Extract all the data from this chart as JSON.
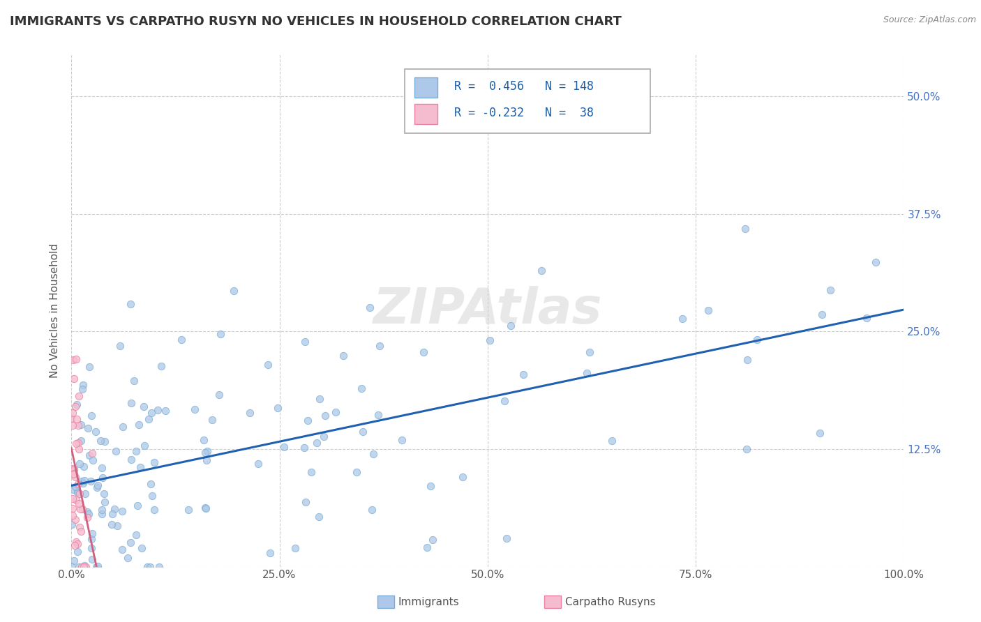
{
  "title": "IMMIGRANTS VS CARPATHO RUSYN NO VEHICLES IN HOUSEHOLD CORRELATION CHART",
  "source": "Source: ZipAtlas.com",
  "ylabel": "No Vehicles in Household",
  "xlim": [
    0,
    1.0
  ],
  "ylim": [
    0,
    0.545
  ],
  "xticks": [
    0.0,
    0.25,
    0.5,
    0.75,
    1.0
  ],
  "xtick_labels": [
    "0.0%",
    "25.0%",
    "50.0%",
    "75.0%",
    "100.0%"
  ],
  "yticks": [
    0.0,
    0.125,
    0.25,
    0.375,
    0.5
  ],
  "ytick_labels": [
    "",
    "12.5%",
    "25.0%",
    "37.5%",
    "50.0%"
  ],
  "legend_labels": [
    "Immigrants",
    "Carpatho Rusyns"
  ],
  "R1": 0.456,
  "N1": 148,
  "R2": -0.232,
  "N2": 38,
  "dot_color_1": "#adc8e8",
  "dot_edge_color_1": "#7aadd4",
  "dot_color_2": "#f5bcd0",
  "dot_edge_color_2": "#e8809e",
  "line_color_1": "#2060b0",
  "line_color_2": "#d06080",
  "watermark": "ZIPAtlas",
  "background_color": "#ffffff",
  "grid_color": "#cccccc",
  "title_color": "#333333",
  "legend_text_color": "#1a5fa8",
  "yaxis_label_color": "#4472c4",
  "ylabel_color": "#555555"
}
